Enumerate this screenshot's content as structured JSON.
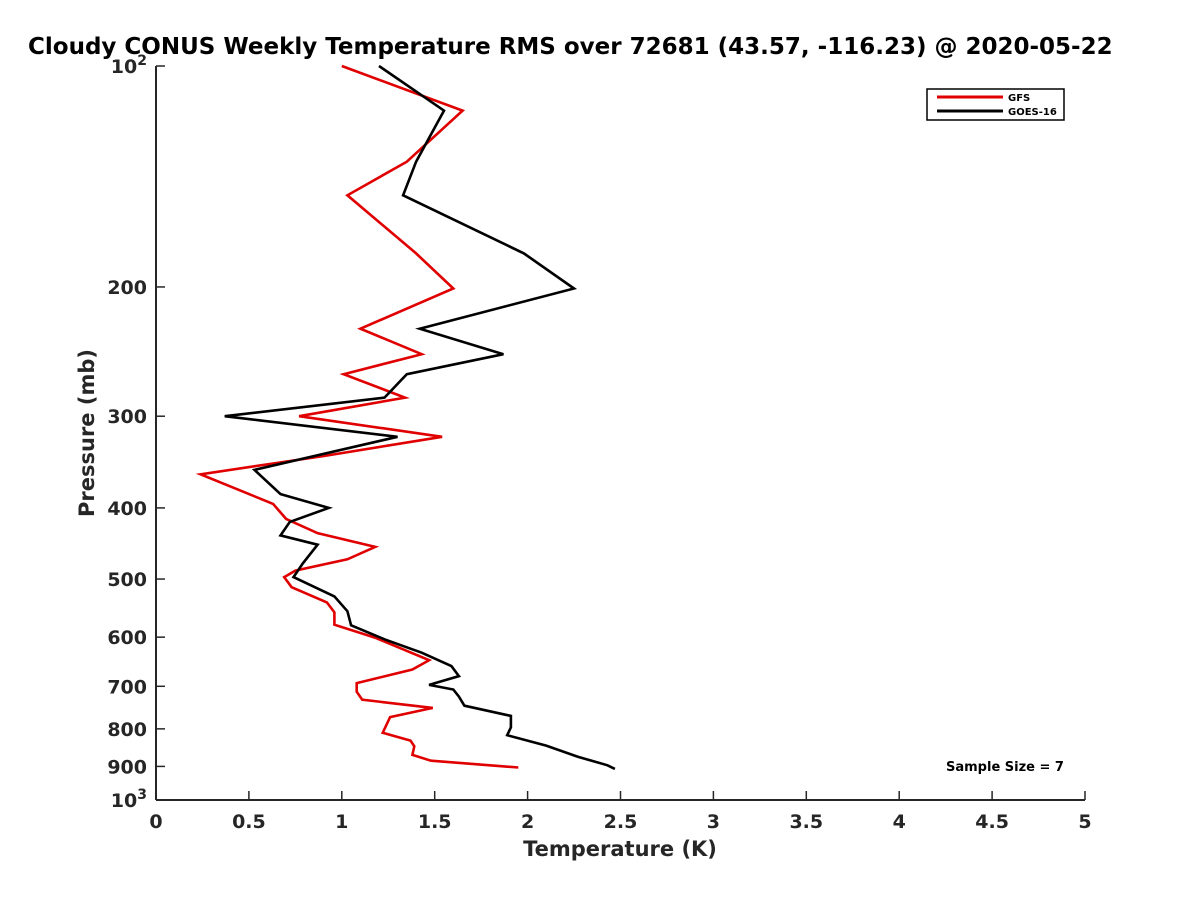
{
  "chart_data": {
    "type": "line",
    "title": "Cloudy CONUS Weekly Temperature RMS over 72681 (43.57, -116.23) @ 2020-05-22",
    "xlabel": "Temperature (K)",
    "ylabel": "Pressure (mb)",
    "xlim": [
      0,
      5
    ],
    "ylim": [
      100,
      1000
    ],
    "y_scale": "log",
    "y_reversed": true,
    "grid": false,
    "legend_position": "top-right",
    "x_ticks": [
      {
        "value": 0,
        "label": "0"
      },
      {
        "value": 0.5,
        "label": "0.5"
      },
      {
        "value": 1,
        "label": "1"
      },
      {
        "value": 1.5,
        "label": "1.5"
      },
      {
        "value": 2,
        "label": "2"
      },
      {
        "value": 2.5,
        "label": "2.5"
      },
      {
        "value": 3,
        "label": "3"
      },
      {
        "value": 3.5,
        "label": "3.5"
      },
      {
        "value": 4,
        "label": "4"
      },
      {
        "value": 4.5,
        "label": "4.5"
      },
      {
        "value": 5,
        "label": "5"
      }
    ],
    "y_ticks": [
      {
        "value": 100,
        "base": "10",
        "exp": "2"
      },
      {
        "value": 200,
        "label": "200"
      },
      {
        "value": 300,
        "label": "300"
      },
      {
        "value": 400,
        "label": "400"
      },
      {
        "value": 500,
        "label": "500"
      },
      {
        "value": 600,
        "label": "600"
      },
      {
        "value": 700,
        "label": "700"
      },
      {
        "value": 800,
        "label": "800"
      },
      {
        "value": 900,
        "label": "900"
      },
      {
        "value": 1000,
        "base": "10",
        "exp": "3"
      }
    ],
    "annotation": "Sample Size = 7",
    "series": [
      {
        "name": "GFS",
        "color": "#e00000",
        "points": [
          [
            1.0,
            100
          ],
          [
            1.65,
            115
          ],
          [
            1.35,
            135
          ],
          [
            1.03,
            150
          ],
          [
            1.4,
            180
          ],
          [
            1.6,
            201
          ],
          [
            1.1,
            228
          ],
          [
            1.43,
            247
          ],
          [
            1.01,
            263
          ],
          [
            1.34,
            283
          ],
          [
            0.77,
            300
          ],
          [
            1.54,
            320
          ],
          [
            0.9,
            340
          ],
          [
            0.24,
            360
          ],
          [
            0.63,
            395
          ],
          [
            0.7,
            414
          ],
          [
            0.87,
            433
          ],
          [
            1.18,
            452
          ],
          [
            1.03,
            470
          ],
          [
            0.75,
            487
          ],
          [
            0.69,
            497
          ],
          [
            0.73,
            513
          ],
          [
            0.92,
            538
          ],
          [
            0.96,
            555
          ],
          [
            0.96,
            577
          ],
          [
            1.18,
            601
          ],
          [
            1.47,
            645
          ],
          [
            1.38,
            664
          ],
          [
            1.08,
            693
          ],
          [
            1.08,
            712
          ],
          [
            1.11,
            730
          ],
          [
            1.49,
            749
          ],
          [
            1.26,
            771
          ],
          [
            1.22,
            810
          ],
          [
            1.37,
            830
          ],
          [
            1.39,
            845
          ],
          [
            1.38,
            868
          ],
          [
            1.48,
            884
          ],
          [
            1.95,
            903
          ]
        ]
      },
      {
        "name": "GOES-16",
        "color": "#000000",
        "points": [
          [
            1.2,
            100
          ],
          [
            1.55,
            115
          ],
          [
            1.4,
            135
          ],
          [
            1.33,
            150
          ],
          [
            1.98,
            180
          ],
          [
            2.25,
            201
          ],
          [
            1.42,
            228
          ],
          [
            1.87,
            247
          ],
          [
            1.35,
            263
          ],
          [
            1.23,
            283
          ],
          [
            0.37,
            300
          ],
          [
            1.3,
            320
          ],
          [
            0.53,
            355
          ],
          [
            0.67,
            383
          ],
          [
            0.93,
            400
          ],
          [
            0.72,
            418
          ],
          [
            0.67,
            436
          ],
          [
            0.87,
            449
          ],
          [
            0.79,
            476
          ],
          [
            0.74,
            497
          ],
          [
            0.96,
            528
          ],
          [
            1.03,
            553
          ],
          [
            1.05,
            578
          ],
          [
            1.23,
            604
          ],
          [
            1.43,
            630
          ],
          [
            1.59,
            657
          ],
          [
            1.63,
            678
          ],
          [
            1.47,
            697
          ],
          [
            1.6,
            707
          ],
          [
            1.63,
            723
          ],
          [
            1.66,
            744
          ],
          [
            1.91,
            768
          ],
          [
            1.91,
            796
          ],
          [
            1.89,
            816
          ],
          [
            2.1,
            843
          ],
          [
            2.27,
            873
          ],
          [
            2.43,
            897
          ],
          [
            2.47,
            907
          ]
        ]
      }
    ]
  }
}
